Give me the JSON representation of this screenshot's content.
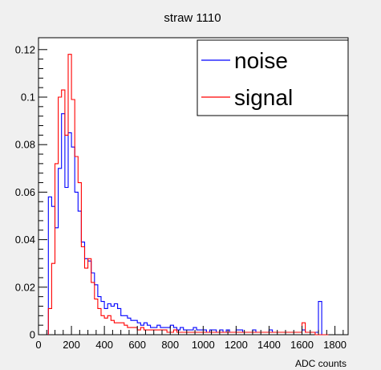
{
  "chart_data": {
    "type": "line",
    "title": "straw 1110",
    "xlabel": "ADC counts",
    "ylabel": "",
    "xlim": [
      0,
      1880
    ],
    "ylim": [
      0,
      0.125
    ],
    "x_ticks": [
      0,
      200,
      400,
      600,
      800,
      1000,
      1200,
      1400,
      1600,
      1800
    ],
    "y_ticks": [
      0,
      0.02,
      0.04,
      0.06,
      0.08,
      0.1,
      0.12
    ],
    "y_tick_labels": [
      "0",
      "0.02",
      "0.04",
      "0.06",
      "0.08",
      "0.1",
      "0.12"
    ],
    "grid": false,
    "legend_position": "top-right",
    "bin_width": 20,
    "series": [
      {
        "name": "noise",
        "color": "#0000ff",
        "x": [
          60,
          80,
          100,
          120,
          140,
          160,
          180,
          200,
          220,
          240,
          260,
          280,
          300,
          320,
          340,
          360,
          380,
          400,
          420,
          440,
          460,
          480,
          500,
          520,
          540,
          560,
          580,
          600,
          620,
          640,
          660,
          680,
          700,
          720,
          740,
          760,
          780,
          800,
          820,
          840,
          860,
          880,
          900,
          920,
          940,
          960,
          980,
          1000,
          1020,
          1040,
          1060,
          1080,
          1100,
          1120,
          1140,
          1160,
          1180,
          1200,
          1220,
          1240,
          1260,
          1280,
          1300,
          1320,
          1340,
          1360,
          1380,
          1400,
          1420,
          1440,
          1460,
          1480,
          1500,
          1520,
          1540,
          1560,
          1580,
          1600,
          1620,
          1640,
          1660,
          1680,
          1700,
          1720,
          1740
        ],
        "values": [
          0.058,
          0.054,
          0.045,
          0.07,
          0.093,
          0.062,
          0.085,
          0.079,
          0.06,
          0.052,
          0.039,
          0.032,
          0.031,
          0.026,
          0.021,
          0.016,
          0.014,
          0.011,
          0.013,
          0.012,
          0.013,
          0.011,
          0.008,
          0.008,
          0.007,
          0.006,
          0.006,
          0.005,
          0.004,
          0.005,
          0.004,
          0.003,
          0.003,
          0.004,
          0.003,
          0.003,
          0.003,
          0.004,
          0.003,
          0.002,
          0.003,
          0.002,
          0.002,
          0.002,
          0.003,
          0.002,
          0.002,
          0.002,
          0.001,
          0.002,
          0.002,
          0.001,
          0.002,
          0.001,
          0.002,
          0.001,
          0.001,
          0.002,
          0.002,
          0.001,
          0.001,
          0.001,
          0.002,
          0.001,
          0.001,
          0.001,
          0.001,
          0.002,
          0.001,
          0.001,
          0.001,
          0.001,
          0.001,
          0.001,
          0.001,
          0.001,
          0.001,
          0.002,
          0.001,
          0.001,
          0.001,
          0.001,
          0.014,
          0,
          0
        ]
      },
      {
        "name": "signal",
        "color": "#ff0000",
        "x": [
          60,
          80,
          100,
          120,
          140,
          160,
          180,
          200,
          220,
          240,
          260,
          280,
          300,
          320,
          340,
          360,
          380,
          400,
          420,
          440,
          460,
          480,
          500,
          520,
          540,
          560,
          580,
          600,
          620,
          640,
          660,
          680,
          700,
          720,
          740,
          760,
          780,
          800,
          820,
          840,
          860,
          880,
          900,
          920,
          940,
          960,
          980,
          1000,
          1020,
          1040,
          1060,
          1080,
          1100,
          1120,
          1140,
          1160,
          1180,
          1200,
          1220,
          1240,
          1260,
          1280,
          1300,
          1320,
          1340,
          1360,
          1380,
          1400,
          1420,
          1440,
          1460,
          1480,
          1500,
          1520,
          1540,
          1560,
          1580,
          1600,
          1620,
          1640,
          1660,
          1680,
          1700,
          1720,
          1740
        ],
        "values": [
          0.011,
          0.03,
          0.072,
          0.1,
          0.103,
          0.084,
          0.118,
          0.099,
          0.075,
          0.064,
          0.037,
          0.028,
          0.032,
          0.022,
          0.015,
          0.011,
          0.008,
          0.007,
          0.008,
          0.006,
          0.005,
          0.005,
          0.005,
          0.004,
          0.003,
          0.003,
          0.003,
          0.002,
          0.003,
          0.002,
          0.002,
          0.002,
          0.002,
          0.002,
          0.002,
          0.002,
          0.001,
          0.001,
          0.002,
          0.001,
          0.001,
          0.001,
          0.001,
          0.001,
          0.001,
          0.001,
          0.001,
          0.001,
          0.001,
          0.001,
          0.001,
          0.001,
          0.001,
          0.001,
          0.001,
          0.001,
          0.001,
          0.001,
          0.001,
          0.001,
          0.001,
          0.001,
          0.001,
          0.001,
          0.001,
          0.001,
          0.001,
          0.001,
          0.001,
          0.001,
          0.001,
          0.001,
          0.001,
          0.001,
          0.001,
          0.001,
          0.001,
          0.005,
          0.001,
          0.001,
          0.001,
          0,
          0,
          0,
          0
        ]
      }
    ]
  }
}
